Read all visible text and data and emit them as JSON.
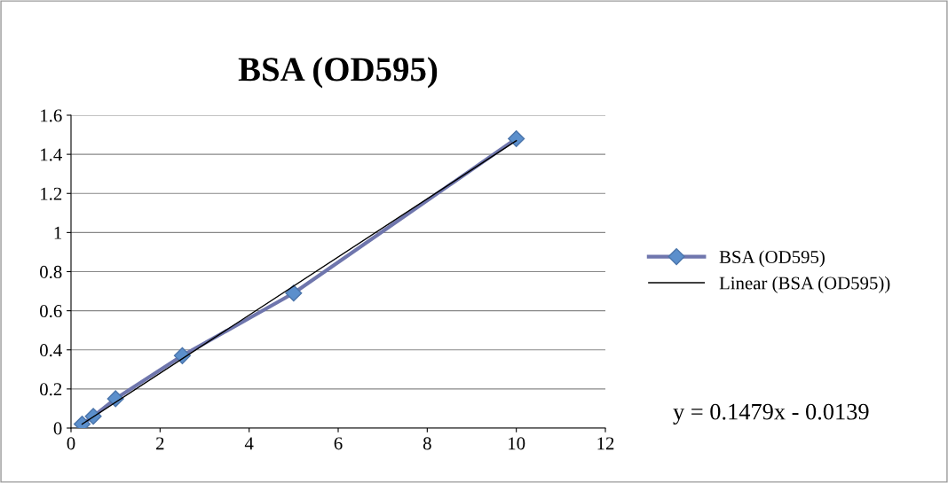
{
  "chart_data": {
    "type": "line",
    "title": "BSA (OD595)",
    "series": [
      {
        "name": "BSA (OD595)",
        "color": "#6f76ad",
        "marker": "diamond",
        "x": [
          0.25,
          0.5,
          1,
          2.5,
          5,
          10
        ],
        "values": [
          0.02,
          0.06,
          0.15,
          0.37,
          0.69,
          1.48
        ]
      },
      {
        "name": "Linear (BSA (OD595))",
        "color": "#000000",
        "marker": "none",
        "x": [
          0.25,
          10
        ],
        "values": [
          0.02,
          1.47
        ]
      }
    ],
    "xlim": [
      0,
      12
    ],
    "xticks": [
      0,
      2,
      4,
      6,
      8,
      10,
      12
    ],
    "ylim": [
      0,
      1.6
    ],
    "yticks": [
      0,
      0.2,
      0.4,
      0.6,
      0.8,
      1,
      1.2,
      1.4,
      1.6
    ],
    "grid": "y",
    "legend": "right",
    "annotations": [
      "y = 0.1479x - 0.0139"
    ]
  }
}
